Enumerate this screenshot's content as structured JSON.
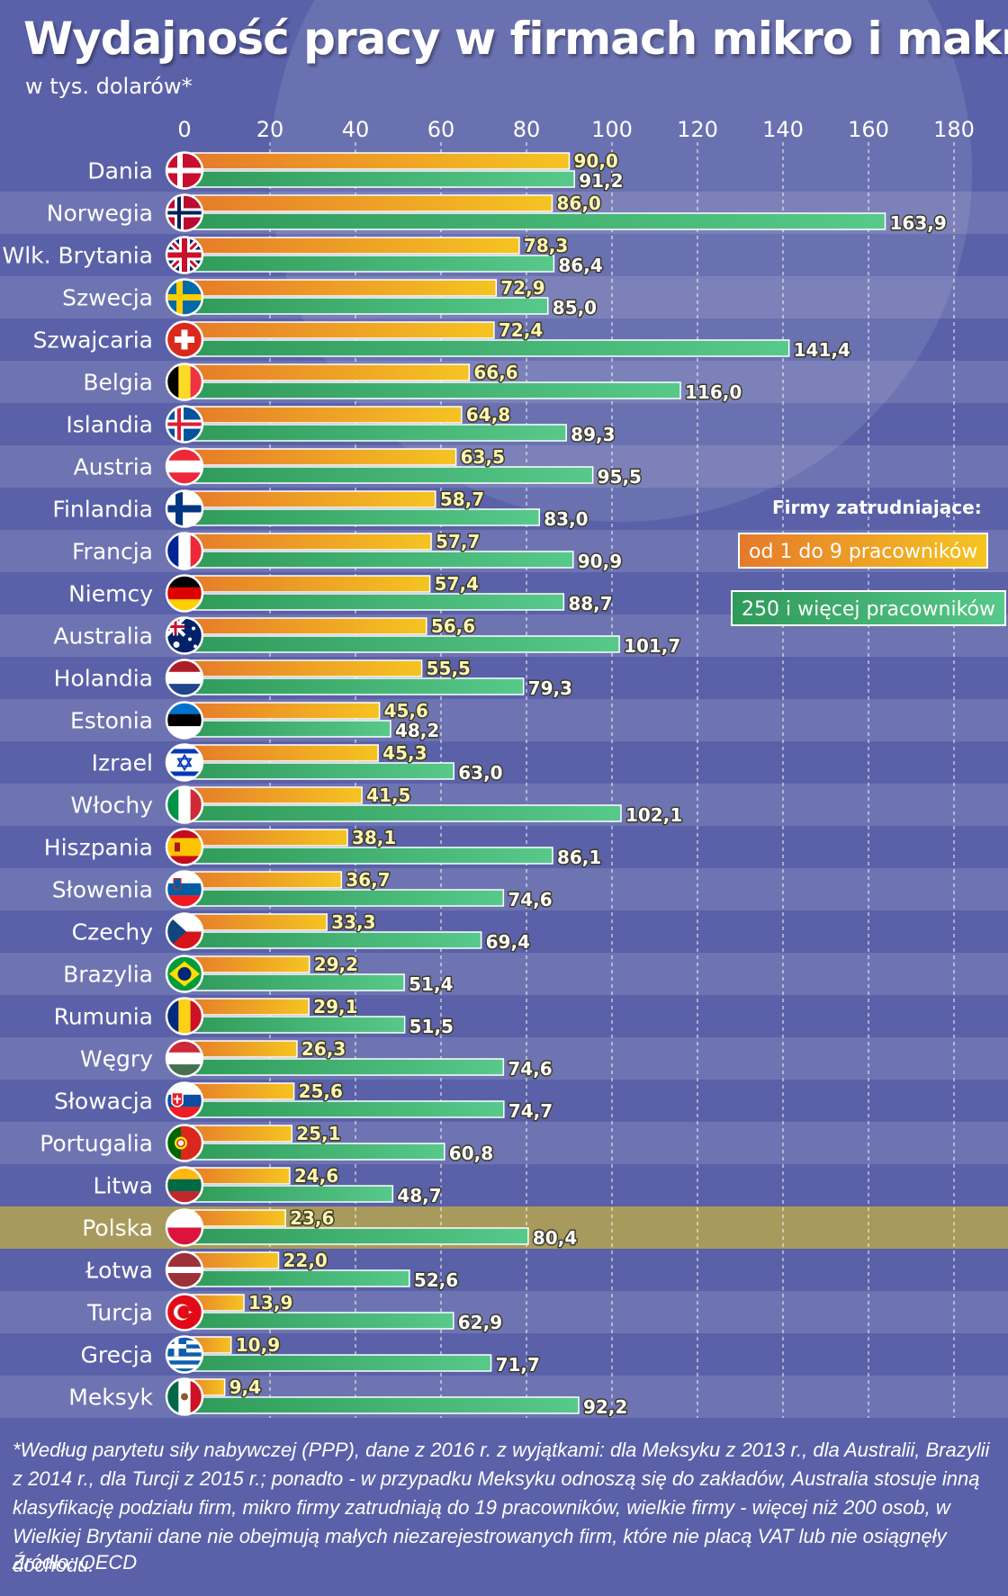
{
  "title": "Wydajność pracy w firmach mikro i makro",
  "subtitle": "w tys. dolarów*",
  "legend": {
    "title": "Firmy zatrudniające:",
    "micro": "od 1 do 9 pracowników",
    "large": "250 i więcej pracowników"
  },
  "footnote": "*Według parytetu siły nabywczej (PPP), dane z 2016 r. z wyjątkami: dla Meksyku z 2013 r., dla Australii, Brazylii z 2014 r., dla Turcji z 2015 r.; ponadto - w przypadku Meksyku odnoszą się do zakładów, Australia stosuje inną klasyfikację podziału firm, mikro firmy zatrudniają do 19 pracowników, wielkie firmy - więcej niż 200 osob, w Wielkiej Brytanii dane nie obejmują małych niezarejestrowanych firm, które nie placą VAT lub nie osiągnęły dochodu.",
  "source": "Źródło: OECD",
  "colors": {
    "background": "#5a61a8",
    "micro_start": "#e57a2a",
    "micro_end": "#f5c421",
    "large_start": "#2f9a5a",
    "large_end": "#57c98a",
    "highlight_row": "#a89a5c"
  },
  "chart_data": {
    "type": "bar",
    "orientation": "horizontal",
    "title": "Wydajność pracy w firmach mikro i makro",
    "xlim": [
      0,
      180
    ],
    "xticks": [
      0,
      20,
      40,
      60,
      80,
      100,
      120,
      140,
      160,
      180
    ],
    "grid": true,
    "legend_position": "right",
    "highlight": "Polska",
    "categories": [
      "Dania",
      "Norwegia",
      "Wlk. Brytania",
      "Szwecja",
      "Szwajcaria",
      "Belgia",
      "Islandia",
      "Austria",
      "Finlandia",
      "Francja",
      "Niemcy",
      "Australia",
      "Holandia",
      "Estonia",
      "Izrael",
      "Włochy",
      "Hiszpania",
      "Słowenia",
      "Czechy",
      "Brazylia",
      "Rumunia",
      "Węgry",
      "Słowacja",
      "Portugalia",
      "Litwa",
      "Polska",
      "Łotwa",
      "Turcja",
      "Grecja",
      "Meksyk"
    ],
    "flags": [
      "denmark-flag",
      "norway-flag",
      "uk-flag",
      "sweden-flag",
      "switzerland-flag",
      "belgium-flag",
      "iceland-flag",
      "austria-flag",
      "finland-flag",
      "france-flag",
      "germany-flag",
      "australia-flag",
      "netherlands-flag",
      "estonia-flag",
      "israel-flag",
      "italy-flag",
      "spain-flag",
      "slovenia-flag",
      "czechia-flag",
      "brazil-flag",
      "romania-flag",
      "hungary-flag",
      "slovakia-flag",
      "portugal-flag",
      "lithuania-flag",
      "poland-flag",
      "latvia-flag",
      "turkey-flag",
      "greece-flag",
      "mexico-flag"
    ],
    "series": [
      {
        "name": "od 1 do 9 pracowników",
        "values": [
          90.0,
          86.0,
          78.3,
          72.9,
          72.4,
          66.6,
          64.8,
          63.5,
          58.7,
          57.7,
          57.4,
          56.6,
          55.5,
          45.6,
          45.3,
          41.5,
          38.1,
          36.7,
          33.3,
          29.2,
          29.1,
          26.3,
          25.6,
          25.1,
          24.6,
          23.6,
          22.0,
          13.9,
          10.9,
          9.4
        ]
      },
      {
        "name": "250 i więcej pracowników",
        "values": [
          91.2,
          163.9,
          86.4,
          85.0,
          141.4,
          116.0,
          89.3,
          95.5,
          83.0,
          90.9,
          88.7,
          101.7,
          79.3,
          48.2,
          63.0,
          102.1,
          86.1,
          74.6,
          69.4,
          51.4,
          51.5,
          74.6,
          74.7,
          60.8,
          48.7,
          80.4,
          52.6,
          62.9,
          71.7,
          92.2
        ]
      }
    ],
    "value_labels": {
      "micro": [
        "90,0",
        "86,0",
        "78,3",
        "72,9",
        "72,4",
        "66,6",
        "64,8",
        "63,5",
        "58,7",
        "57,7",
        "57,4",
        "56,6",
        "55,5",
        "45,6",
        "45,3",
        "41,5",
        "38,1",
        "36,7",
        "33,3",
        "29,2",
        "29,1",
        "26,3",
        "25,6",
        "25,1",
        "24,6",
        "23,6",
        "22,0",
        "13,9",
        "10,9",
        "9,4"
      ],
      "large": [
        "91,2",
        "163,9",
        "86,4",
        "85,0",
        "141,4",
        "116,0",
        "89,3",
        "95,5",
        "83,0",
        "90,9",
        "88,7",
        "101,7",
        "79,3",
        "48,2",
        "63,0",
        "102,1",
        "86,1",
        "74,6",
        "69,4",
        "51,4",
        "51,5",
        "74,6",
        "74,7",
        "60,8",
        "48,7",
        "80,4",
        "52,6",
        "62,9",
        "71,7",
        "92,2"
      ]
    }
  }
}
